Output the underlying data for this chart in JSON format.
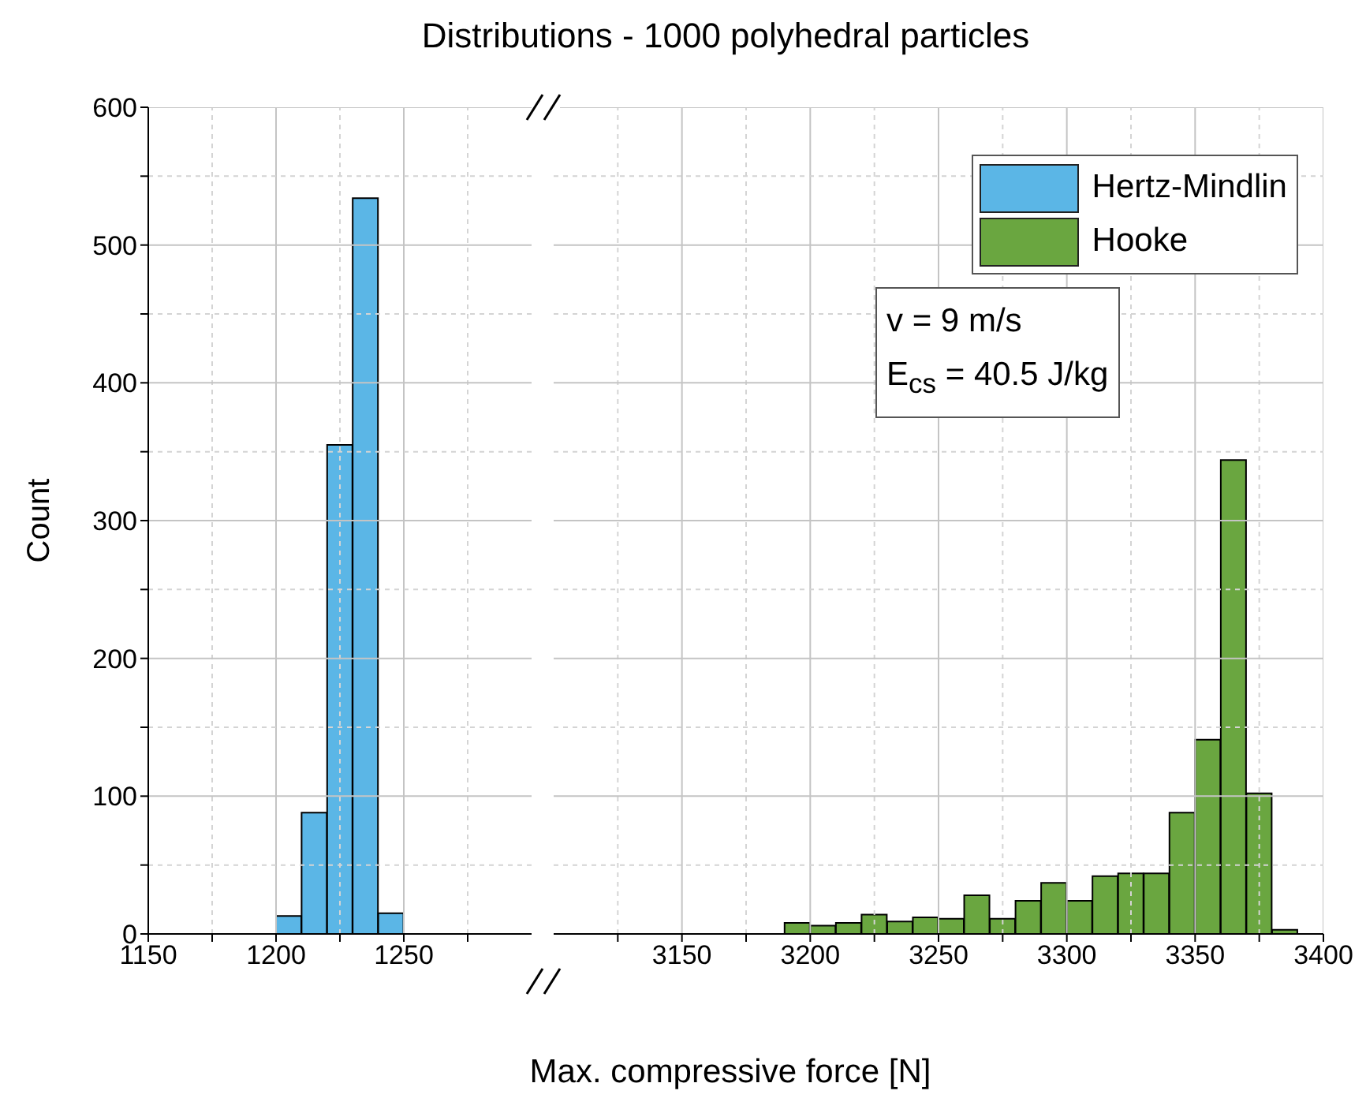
{
  "chart_data": [
    {
      "type": "histogram",
      "title": "Distributions - 1000 polyhedral particles",
      "ylabel": "Count",
      "xlim": [
        1150,
        1300
      ],
      "xticks": [
        1150,
        {
          "value": 1175,
          "label": null
        },
        1200,
        {
          "value": 1225,
          "label": null
        },
        1250,
        {
          "value": 1275,
          "label": null
        }
      ],
      "ylim": [
        0,
        600
      ],
      "yticks": [
        0,
        {
          "value": 50,
          "label": null
        },
        100,
        {
          "value": 150,
          "label": null
        },
        200,
        {
          "value": 250,
          "label": null
        },
        300,
        {
          "value": 350,
          "label": null
        },
        400,
        {
          "value": 450,
          "label": null
        },
        500,
        {
          "value": 550,
          "label": null
        },
        600
      ],
      "grid": true,
      "bins": [
        1200,
        1210,
        1220,
        1230,
        1240,
        1250
      ],
      "series": [
        {
          "name": "Hertz-Mindlin",
          "color": "#5bb6e6",
          "values": [
            13,
            88,
            355,
            534,
            15
          ]
        }
      ]
    },
    {
      "type": "histogram",
      "xlabel": "Max. compressive force [N]",
      "xlim": [
        3100,
        3400
      ],
      "xticks": [
        {
          "value": 3125,
          "label": null
        },
        3150,
        {
          "value": 3175,
          "label": null
        },
        3200,
        {
          "value": 3225,
          "label": null
        },
        3250,
        {
          "value": 3275,
          "label": null
        },
        3300,
        {
          "value": 3325,
          "label": null
        },
        3350,
        {
          "value": 3375,
          "label": null
        },
        3400
      ],
      "ylim": [
        0,
        600
      ],
      "yticks": [
        0,
        {
          "value": 50,
          "label": null
        },
        100,
        {
          "value": 150,
          "label": null
        },
        200,
        {
          "value": 250,
          "label": null
        },
        300,
        {
          "value": 350,
          "label": null
        },
        400,
        {
          "value": 450,
          "label": null
        },
        500,
        {
          "value": 550,
          "label": null
        },
        600
      ],
      "grid": true,
      "tick_labels": "x",
      "legend": "top right",
      "annotations": [
        "v = 9 m/s",
        "E$_{cs}$ = 40.5 J/kg"
      ],
      "bins": [
        3190,
        3200,
        3210,
        3220,
        3230,
        3240,
        3250,
        3260,
        3270,
        3280,
        3290,
        3300,
        3310,
        3320,
        3330,
        3340,
        3350,
        3360,
        3370,
        3380,
        3390
      ],
      "series": [
        {
          "name": "Hooke",
          "color": "#6aa640",
          "values": [
            8,
            6,
            8,
            14,
            9,
            12,
            11,
            28,
            11,
            24,
            37,
            24,
            42,
            44,
            44,
            88,
            141,
            344,
            102,
            3
          ]
        }
      ]
    }
  ]
}
